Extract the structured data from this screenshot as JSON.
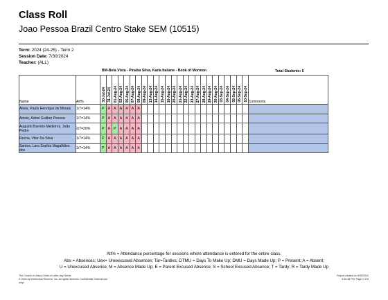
{
  "header": {
    "title": "Class Roll",
    "subtitle": "Joao Pessoa Brazil Centro Stake SEM (10515)"
  },
  "meta": {
    "term_label": "Term:",
    "term_value": " 2024 (24-25) - Term 2",
    "session_label": "Session Date:",
    "session_value": " 7/30/2024",
    "teacher_label": "Teacher:",
    "teacher_value": " (ALL)"
  },
  "session_header": "BM-Bela Vista - Piraiba Silva, Karla Italiane - Book of Mormon",
  "total_students": "Total Students: 5",
  "columns": {
    "name": "Name",
    "att": "Att%",
    "comments": "Comments"
  },
  "dates": [
    "30-Jul-24",
    "31-Jul-24",
    "01-Aug-24",
    "02-Aug-24",
    "06-Aug-24",
    "07-Aug-24",
    "08-Aug-24",
    "09-Aug-24",
    "13-Aug-24",
    "14-Aug-24",
    "15-Aug-24",
    "16-Aug-24",
    "20-Aug-24",
    "21-Aug-24",
    "22-Aug-24",
    "23-Aug-24",
    "27-Aug-24",
    "28-Aug-24",
    "29-Aug-24",
    "30-Aug-24",
    "03-Sep-24",
    "04-Sep-24",
    "05-Sep-24",
    "06-Sep-24",
    "10-Sep-24"
  ],
  "students": [
    {
      "name": "Alves, Paulo Henrique de Morais",
      "att": "1/7=14%",
      "marks": [
        "P",
        "A",
        "A",
        "A",
        "A",
        "A",
        "A"
      ]
    },
    {
      "name": "Anisio, Adriel Guilber Pessoa",
      "att": "1/7=14%",
      "marks": [
        "P",
        "A",
        "A",
        "A",
        "A",
        "A",
        "A"
      ]
    },
    {
      "name": "Augusto Barreto Medeiros, João Pedro",
      "att": "2/7=29%",
      "marks": [
        "P",
        "A",
        "P",
        "A",
        "A",
        "A",
        "A"
      ]
    },
    {
      "name": "Rocha, Vitor Da Silva",
      "att": "1/7=14%",
      "marks": [
        "P",
        "A",
        "A",
        "A",
        "A",
        "A",
        "A"
      ]
    },
    {
      "name": "Santos, Lara Sophia Magalhães dos",
      "att": "1/7=14%",
      "marks": [
        "P",
        "A",
        "A",
        "A",
        "A",
        "A",
        "A"
      ]
    }
  ],
  "legend": {
    "line1": "Att% = Attendance percentage for sessions where attendance is entered for the entire class.",
    "line2": "Abs = Absences; Uex= Unexecused Absences; Tar=Tardies; DTMU = Days To Make Up; DMU = Days Made Up; P = Present; A = Absent;",
    "line3": "U = Unexcused Absence; M = Absence Made Up; E = Parent Excused Absence; S = School Excused Absence; T = Tardy; R = Tardy Made Up"
  },
  "footer": {
    "left1": "The Church of Jesus Christ of Latter-day Saints",
    "left2": "© 2024 by Intellectual Reserve, Inc. All rights reserved. Confidential. Internal use",
    "left3": "onlyl",
    "right1": "Report created on 8/30/2024",
    "right2": "5:30:38 PM. Page 1 of 6"
  },
  "colors": {
    "name_bg": "#b4c6e7",
    "present_bg": "#a6e8a6",
    "absent_bg": "#f4b6c2"
  }
}
